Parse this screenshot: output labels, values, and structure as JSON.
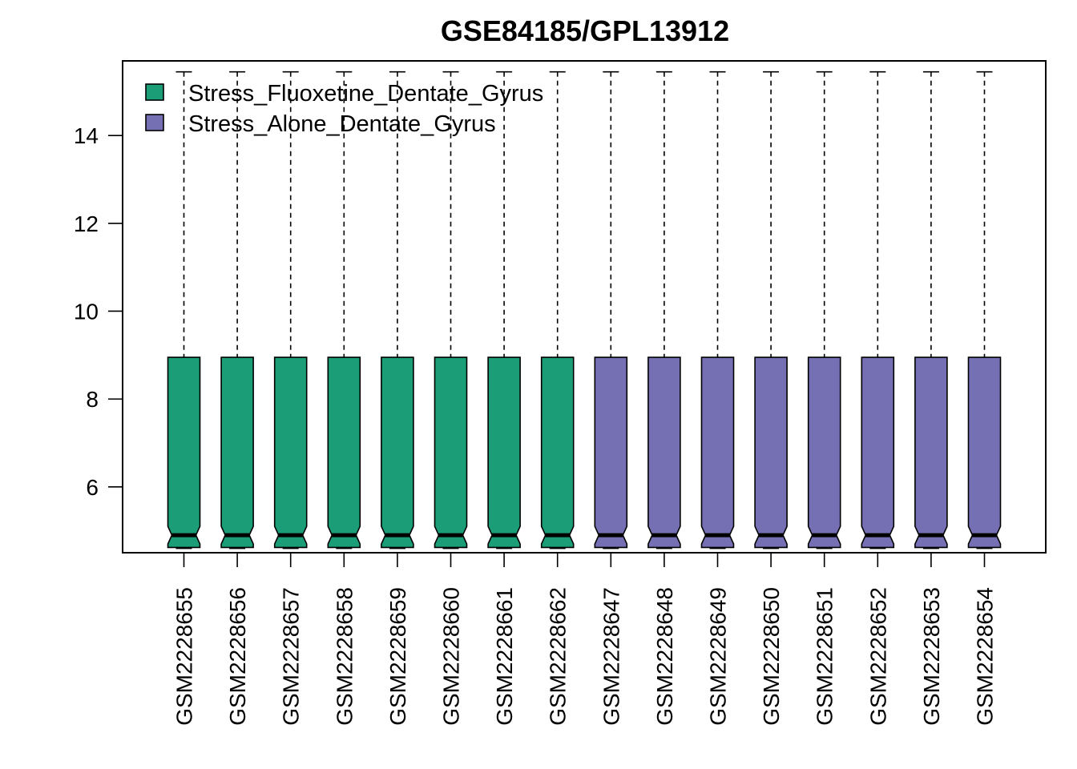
{
  "chart_data": {
    "type": "boxplot",
    "title": "GSE84185/GPL13912",
    "xlabel": "",
    "ylabel": "",
    "ylim": [
      4.5,
      15.7
    ],
    "yticks": [
      6,
      8,
      10,
      12,
      14
    ],
    "grid": false,
    "legend_position": "top-left",
    "groups": [
      {
        "name": "Stress_Fluoxetine_Dentate_Gyrus",
        "color": "#1B9E77"
      },
      {
        "name": "Stress_Alone_Dentate_Gyrus",
        "color": "#7570B3"
      }
    ],
    "samples": [
      {
        "id": "GSM2228655",
        "group": 0,
        "min": 4.6,
        "q1": 4.62,
        "median": 4.9,
        "q3": 8.95,
        "max": 15.45
      },
      {
        "id": "GSM2228656",
        "group": 0,
        "min": 4.6,
        "q1": 4.62,
        "median": 4.9,
        "q3": 8.95,
        "max": 15.45
      },
      {
        "id": "GSM2228657",
        "group": 0,
        "min": 4.6,
        "q1": 4.62,
        "median": 4.9,
        "q3": 8.95,
        "max": 15.45
      },
      {
        "id": "GSM2228658",
        "group": 0,
        "min": 4.6,
        "q1": 4.62,
        "median": 4.9,
        "q3": 8.95,
        "max": 15.45
      },
      {
        "id": "GSM2228659",
        "group": 0,
        "min": 4.6,
        "q1": 4.62,
        "median": 4.9,
        "q3": 8.95,
        "max": 15.45
      },
      {
        "id": "GSM2228660",
        "group": 0,
        "min": 4.6,
        "q1": 4.62,
        "median": 4.9,
        "q3": 8.95,
        "max": 15.45
      },
      {
        "id": "GSM2228661",
        "group": 0,
        "min": 4.6,
        "q1": 4.62,
        "median": 4.9,
        "q3": 8.95,
        "max": 15.45
      },
      {
        "id": "GSM2228662",
        "group": 0,
        "min": 4.6,
        "q1": 4.62,
        "median": 4.9,
        "q3": 8.95,
        "max": 15.45
      },
      {
        "id": "GSM2228647",
        "group": 1,
        "min": 4.6,
        "q1": 4.62,
        "median": 4.9,
        "q3": 8.95,
        "max": 15.45
      },
      {
        "id": "GSM2228648",
        "group": 1,
        "min": 4.6,
        "q1": 4.62,
        "median": 4.9,
        "q3": 8.95,
        "max": 15.45
      },
      {
        "id": "GSM2228649",
        "group": 1,
        "min": 4.6,
        "q1": 4.62,
        "median": 4.9,
        "q3": 8.95,
        "max": 15.45
      },
      {
        "id": "GSM2228650",
        "group": 1,
        "min": 4.6,
        "q1": 4.62,
        "median": 4.9,
        "q3": 8.95,
        "max": 15.45
      },
      {
        "id": "GSM2228651",
        "group": 1,
        "min": 4.6,
        "q1": 4.62,
        "median": 4.9,
        "q3": 8.95,
        "max": 15.45
      },
      {
        "id": "GSM2228652",
        "group": 1,
        "min": 4.6,
        "q1": 4.62,
        "median": 4.9,
        "q3": 8.95,
        "max": 15.45
      },
      {
        "id": "GSM2228653",
        "group": 1,
        "min": 4.6,
        "q1": 4.62,
        "median": 4.9,
        "q3": 8.95,
        "max": 15.45
      },
      {
        "id": "GSM2228654",
        "group": 1,
        "min": 4.6,
        "q1": 4.62,
        "median": 4.9,
        "q3": 8.95,
        "max": 15.45
      }
    ]
  }
}
